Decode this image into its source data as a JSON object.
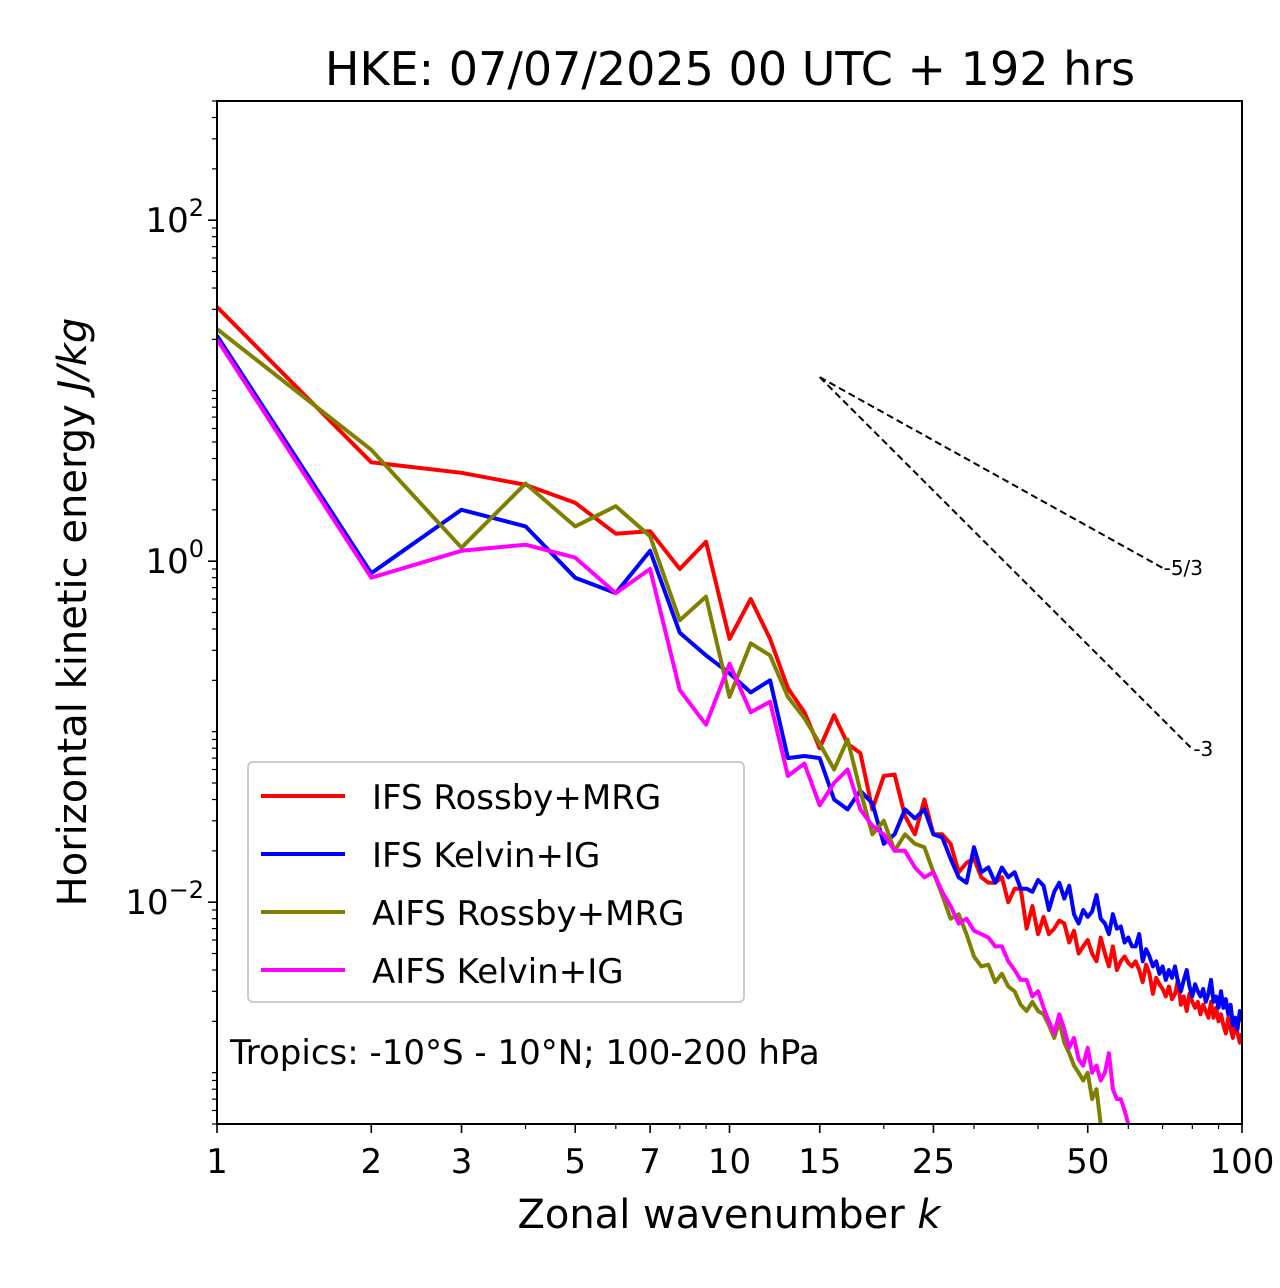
{
  "chart_data": {
    "type": "line",
    "title": "HKE: 07/07/2025 00 UTC + 192 hrs",
    "xlabel_main": "Zonal wavenumber ",
    "xlabel_italic": "k",
    "ylabel_main": "Horizontal kinetic energy ",
    "ylabel_italic": "J/kg",
    "x_scale": "log",
    "y_scale": "log",
    "xlim": [
      1,
      100
    ],
    "ylim": [
      0.0005,
      500
    ],
    "x_ticks": [
      {
        "value": 1,
        "label": "1"
      },
      {
        "value": 2,
        "label": "2"
      },
      {
        "value": 3,
        "label": "3"
      },
      {
        "value": 5,
        "label": "5"
      },
      {
        "value": 7,
        "label": "7"
      },
      {
        "value": 10,
        "label": "10"
      },
      {
        "value": 15,
        "label": "15"
      },
      {
        "value": 25,
        "label": "25"
      },
      {
        "value": 50,
        "label": "50"
      },
      {
        "value": 100,
        "label": "100"
      }
    ],
    "y_ticks": [
      {
        "value": 0.01,
        "base": "10",
        "exp": "−2"
      },
      {
        "value": 1,
        "base": "10",
        "exp": "0"
      },
      {
        "value": 100,
        "base": "10",
        "exp": "2"
      }
    ],
    "annotation": "Tropics: -10°S - 10°N; 100-200 hPa",
    "legend_position": "lower-left",
    "reference_lines": [
      {
        "label": "-5/3",
        "x": [
          15,
          70
        ],
        "y": [
          12.0,
          0.913
        ]
      },
      {
        "label": "-3",
        "x": [
          15,
          80
        ],
        "y": [
          12.0,
          0.079
        ]
      }
    ],
    "series": [
      {
        "name": "IFS Rossby+MRG",
        "color": "#ff0000",
        "x": [
          1,
          2,
          3,
          4,
          5,
          6,
          7,
          8,
          9,
          10,
          11,
          12,
          13,
          14,
          15,
          16,
          17,
          18,
          19,
          20,
          21,
          22,
          23,
          24,
          25,
          26,
          27,
          28,
          29,
          30,
          31,
          32,
          33,
          34,
          35,
          36,
          37,
          38,
          39,
          40,
          41,
          42,
          43,
          44,
          45,
          46,
          47,
          48,
          49,
          50,
          51,
          52,
          53,
          54,
          55,
          56,
          57,
          58,
          59,
          60,
          61,
          62,
          63,
          64,
          65,
          66,
          67,
          68,
          69,
          70,
          71,
          72,
          73,
          74,
          75,
          76,
          77,
          78,
          79,
          80,
          81,
          82,
          83,
          84,
          85,
          86,
          87,
          88,
          89,
          90,
          91,
          92,
          93,
          94,
          95,
          96,
          97,
          98,
          99,
          100
        ],
        "y": [
          31,
          3.8,
          3.3,
          2.8,
          2.2,
          1.45,
          1.5,
          0.9,
          1.3,
          0.35,
          0.6,
          0.35,
          0.18,
          0.13,
          0.08,
          0.125,
          0.085,
          0.075,
          0.035,
          0.055,
          0.056,
          0.032,
          0.025,
          0.04,
          0.025,
          0.025,
          0.022,
          0.015,
          0.017,
          0.018,
          0.014,
          0.013,
          0.013,
          0.014,
          0.01,
          0.012,
          0.012,
          0.007,
          0.0095,
          0.0065,
          0.0082,
          0.0065,
          0.007,
          0.0078,
          0.0075,
          0.0058,
          0.0068,
          0.005,
          0.0055,
          0.006,
          0.005,
          0.0045,
          0.0062,
          0.005,
          0.0042,
          0.0055,
          0.004,
          0.0045,
          0.0048,
          0.0044,
          0.0042,
          0.0045,
          0.004,
          0.0034,
          0.0043,
          0.0038,
          0.0029,
          0.0036,
          0.0033,
          0.0031,
          0.0028,
          0.0032,
          0.0027,
          0.0029,
          0.0035,
          0.0025,
          0.0028,
          0.0023,
          0.0029,
          0.0026,
          0.0024,
          0.0026,
          0.0022,
          0.0025,
          0.0023,
          0.0021,
          0.0026,
          0.0021,
          0.0024,
          0.002,
          0.0022,
          0.0019,
          0.0017,
          0.0021,
          0.0018,
          0.0016,
          0.002,
          0.0017,
          0.0015,
          0.0017
        ]
      },
      {
        "name": "IFS Kelvin+IG",
        "color": "#0000ff",
        "x": [
          1,
          2,
          3,
          4,
          5,
          6,
          7,
          8,
          9,
          10,
          11,
          12,
          13,
          14,
          15,
          16,
          17,
          18,
          19,
          20,
          21,
          22,
          23,
          24,
          25,
          26,
          27,
          28,
          29,
          30,
          31,
          32,
          33,
          34,
          35,
          36,
          37,
          38,
          39,
          40,
          41,
          42,
          43,
          44,
          45,
          46,
          47,
          48,
          49,
          50,
          51,
          52,
          53,
          54,
          55,
          56,
          57,
          58,
          59,
          60,
          61,
          62,
          63,
          64,
          65,
          66,
          67,
          68,
          69,
          70,
          71,
          72,
          73,
          74,
          75,
          76,
          77,
          78,
          79,
          80,
          81,
          82,
          83,
          84,
          85,
          86,
          87,
          88,
          89,
          90,
          91,
          92,
          93,
          94,
          95,
          96,
          97,
          98,
          99,
          100
        ],
        "y": [
          21,
          0.85,
          2.0,
          1.6,
          0.8,
          0.65,
          1.15,
          0.38,
          0.28,
          0.22,
          0.17,
          0.2,
          0.07,
          0.072,
          0.07,
          0.04,
          0.035,
          0.045,
          0.038,
          0.022,
          0.025,
          0.035,
          0.031,
          0.035,
          0.025,
          0.024,
          0.018,
          0.014,
          0.013,
          0.021,
          0.015,
          0.016,
          0.013,
          0.016,
          0.014,
          0.015,
          0.012,
          0.012,
          0.0115,
          0.0135,
          0.0125,
          0.009,
          0.0115,
          0.013,
          0.0105,
          0.0125,
          0.0085,
          0.0075,
          0.009,
          0.0082,
          0.0088,
          0.011,
          0.008,
          0.0075,
          0.0065,
          0.0085,
          0.007,
          0.0072,
          0.0058,
          0.0062,
          0.0055,
          0.0055,
          0.0065,
          0.0045,
          0.0053,
          0.0048,
          0.0042,
          0.0045,
          0.0038,
          0.0042,
          0.0035,
          0.004,
          0.0036,
          0.0042,
          0.0034,
          0.003,
          0.0035,
          0.004,
          0.0032,
          0.0028,
          0.0033,
          0.003,
          0.0028,
          0.0031,
          0.0026,
          0.0029,
          0.0035,
          0.0026,
          0.0028,
          0.0024,
          0.003,
          0.0024,
          0.0027,
          0.0022,
          0.0025,
          0.0019,
          0.0021,
          0.0018,
          0.0023,
          0.002
        ]
      },
      {
        "name": "AIFS Rossby+MRG",
        "color": "#808000",
        "x": [
          1,
          2,
          3,
          4,
          5,
          6,
          7,
          8,
          9,
          10,
          11,
          12,
          13,
          14,
          15,
          16,
          17,
          18,
          19,
          20,
          21,
          22,
          23,
          24,
          25,
          26,
          27,
          28,
          29,
          30,
          31,
          32,
          33,
          34,
          35,
          36,
          37,
          38,
          39,
          40,
          41,
          42,
          43,
          44,
          45,
          46,
          47,
          48,
          49,
          50,
          51,
          52,
          53
        ],
        "y": [
          23,
          4.5,
          1.2,
          2.85,
          1.6,
          2.1,
          1.4,
          0.45,
          0.62,
          0.16,
          0.33,
          0.28,
          0.16,
          0.12,
          0.085,
          0.06,
          0.09,
          0.045,
          0.025,
          0.03,
          0.02,
          0.025,
          0.022,
          0.021,
          0.015,
          0.011,
          0.008,
          0.0085,
          0.0065,
          0.0048,
          0.0042,
          0.0043,
          0.0034,
          0.0038,
          0.0032,
          0.003,
          0.0025,
          0.0023,
          0.0026,
          0.0023,
          0.0022,
          0.0019,
          0.0016,
          0.002,
          0.0015,
          0.0013,
          0.0011,
          0.001,
          0.0009,
          0.001,
          0.0007,
          0.0008,
          0.0005
        ]
      },
      {
        "name": "AIFS Kelvin+IG",
        "color": "#ff00ff",
        "x": [
          1,
          2,
          3,
          4,
          5,
          6,
          7,
          8,
          9,
          10,
          11,
          12,
          13,
          14,
          15,
          16,
          17,
          18,
          19,
          20,
          21,
          22,
          23,
          24,
          25,
          26,
          27,
          28,
          29,
          30,
          31,
          32,
          33,
          34,
          35,
          36,
          37,
          38,
          39,
          40,
          41,
          42,
          43,
          44,
          45,
          46,
          47,
          48,
          49,
          50,
          51,
          52,
          53,
          54,
          55,
          56,
          57,
          58,
          59,
          60
        ],
        "y": [
          20,
          0.8,
          1.15,
          1.25,
          1.05,
          0.65,
          0.9,
          0.175,
          0.11,
          0.25,
          0.13,
          0.15,
          0.055,
          0.065,
          0.037,
          0.05,
          0.06,
          0.035,
          0.028,
          0.025,
          0.02,
          0.02,
          0.016,
          0.014,
          0.015,
          0.0115,
          0.0095,
          0.0075,
          0.008,
          0.0068,
          0.0065,
          0.0062,
          0.0055,
          0.0055,
          0.0045,
          0.004,
          0.0035,
          0.0035,
          0.0028,
          0.003,
          0.0024,
          0.002,
          0.0017,
          0.0022,
          0.0018,
          0.0014,
          0.0016,
          0.0012,
          0.0011,
          0.0014,
          0.001,
          0.0011,
          0.0009,
          0.001,
          0.0013,
          0.0008,
          0.0007,
          0.0007,
          0.0006,
          0.0005
        ]
      }
    ]
  }
}
